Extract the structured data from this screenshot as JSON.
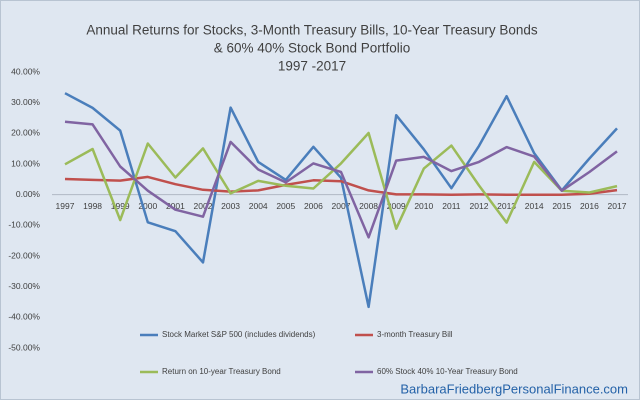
{
  "chart_data": {
    "type": "line",
    "title": [
      "Annual Returns for Stocks, 3-Month Treasury Bills, 10-Year Treasury Bonds",
      "& 60% 40% Stock Bond Portfolio",
      "1997 -2017"
    ],
    "categories": [
      "1997",
      "1998",
      "1999",
      "2000",
      "2001",
      "2002",
      "2003",
      "2004",
      "2005",
      "2006",
      "2007",
      "2008",
      "2009",
      "2010",
      "2011",
      "2012",
      "2013",
      "2014",
      "2015",
      "2016",
      "2017"
    ],
    "series": [
      {
        "name": "Stock Market S&P 500 (includes dividends)",
        "color": "#4a7ebb",
        "values": [
          33.1,
          28.3,
          20.9,
          -9.0,
          -11.9,
          -22.1,
          28.4,
          10.7,
          4.8,
          15.6,
          5.5,
          -36.6,
          25.9,
          14.8,
          2.1,
          15.9,
          32.1,
          13.5,
          1.4,
          11.8,
          21.6
        ]
      },
      {
        "name": "3-month Treasury Bill",
        "color": "#c0504d",
        "values": [
          5.1,
          4.8,
          4.6,
          5.8,
          3.4,
          1.6,
          1.0,
          1.4,
          3.2,
          4.7,
          4.4,
          1.4,
          0.1,
          0.1,
          0.0,
          0.1,
          0.0,
          0.0,
          0.0,
          0.3,
          1.5
        ]
      },
      {
        "name": "Return on 10-year Treasury Bond",
        "color": "#9bbb59",
        "values": [
          9.9,
          14.9,
          -8.3,
          16.7,
          5.6,
          15.1,
          0.4,
          4.5,
          2.9,
          2.0,
          10.2,
          20.1,
          -11.1,
          8.5,
          16.0,
          3.0,
          -9.1,
          10.7,
          1.3,
          0.7,
          2.8
        ]
      },
      {
        "name": "60% Stock 40% 10-Year Treasury Bond",
        "color": "#8064a2",
        "values": [
          23.8,
          22.9,
          9.2,
          1.3,
          -4.9,
          -7.2,
          17.2,
          8.2,
          4.0,
          10.2,
          7.4,
          -13.9,
          11.1,
          12.3,
          7.7,
          10.7,
          15.5,
          12.4,
          1.3,
          7.4,
          14.1
        ]
      }
    ],
    "ylim": [
      -50,
      40
    ],
    "yticks": [
      {
        "value": -50,
        "label": "-50.00%"
      },
      {
        "value": -40,
        "label": "-40.00%"
      },
      {
        "value": -30,
        "label": "-30.00%"
      },
      {
        "value": -20,
        "label": "-20.00%"
      },
      {
        "value": -10,
        "label": "-10.00%"
      },
      {
        "value": 0,
        "label": "0.00%"
      },
      {
        "value": 10,
        "label": "10.00%"
      },
      {
        "value": 20,
        "label": "20.00%"
      },
      {
        "value": 30,
        "label": "30.00%"
      },
      {
        "value": 40,
        "label": "40.00%"
      }
    ],
    "grid": false,
    "legend": "bottom",
    "watermark": "BarbaraFriedbergPersonalFinance.com"
  }
}
